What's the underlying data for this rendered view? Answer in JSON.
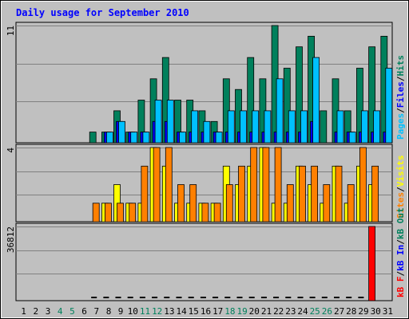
{
  "chart_data": {
    "type": "bar",
    "title": "Daily usage for September 2010",
    "days": [
      "1",
      "2",
      "3",
      "4",
      "5",
      "6",
      "7",
      "8",
      "9",
      "10",
      "11",
      "12",
      "13",
      "14",
      "15",
      "16",
      "17",
      "18",
      "19",
      "20",
      "21",
      "22",
      "23",
      "24",
      "25",
      "26",
      "27",
      "28",
      "29",
      "30",
      "31"
    ],
    "weekend_days": [
      4,
      5,
      11,
      12,
      18,
      19,
      25,
      26
    ],
    "colors": {
      "hits": "#00805c",
      "files": "#0000ff",
      "pages": "#00c0ff",
      "visits": "#ffff00",
      "sites": "#ff8000",
      "kb_out": "#00805c",
      "kb_in": "#0000ff",
      "kb_f": "#ff0000",
      "title": "#0000ff",
      "panel": "#c0c0c0",
      "weekday_label": "#000000",
      "weekend_label": "#00805c"
    },
    "panels": [
      {
        "id": "hits-files-pages",
        "max_label": "11",
        "max": 11,
        "legend": [
          {
            "text": "Pages",
            "color": "#00c0ff"
          },
          {
            "text": "/",
            "color": "#000000"
          },
          {
            "text": "Files",
            "color": "#0000ff"
          },
          {
            "text": "/",
            "color": "#000000"
          },
          {
            "text": "Hits",
            "color": "#00805c"
          }
        ],
        "series": [
          {
            "name": "Hits",
            "color": "#00805c",
            "values": [
              0,
              0,
              0,
              0,
              0,
              0,
              1,
              1,
              3,
              1,
              4,
              6,
              8,
              4,
              4,
              3,
              2,
              6,
              5,
              8,
              6,
              11,
              7,
              9,
              10,
              3,
              6,
              3,
              7,
              9,
              10
            ]
          },
          {
            "name": "Files",
            "color": "#0000ff",
            "values": [
              0,
              0,
              0,
              0,
              0,
              0,
              0,
              1,
              2,
              1,
              1,
              2,
              2,
              1,
              1,
              1,
              1,
              1,
              1,
              1,
              1,
              1,
              1,
              1,
              2,
              0,
              1,
              1,
              1,
              1,
              1
            ]
          },
          {
            "name": "Pages",
            "color": "#00c0ff",
            "values": [
              0,
              0,
              0,
              0,
              0,
              0,
              0,
              1,
              2,
              1,
              1,
              4,
              4,
              1,
              3,
              2,
              1,
              3,
              3,
              3,
              3,
              6,
              3,
              3,
              8,
              0,
              3,
              1,
              3,
              3,
              7
            ]
          }
        ]
      },
      {
        "id": "visits-sites",
        "max_label": "4",
        "max": 4,
        "legend": [
          {
            "text": "Sites",
            "color": "#ff8000"
          },
          {
            "text": "/",
            "color": "#000000"
          },
          {
            "text": "Visits",
            "color": "#ffff00"
          }
        ],
        "series": [
          {
            "name": "Visits",
            "color": "#ffff00",
            "values": [
              0,
              0,
              0,
              0,
              0,
              0,
              0,
              1,
              2,
              1,
              1,
              4,
              3,
              1,
              1,
              1,
              1,
              3,
              2,
              3,
              4,
              1,
              1,
              3,
              2,
              1,
              3,
              1,
              3,
              2,
              0
            ]
          },
          {
            "name": "Sites",
            "color": "#ff8000",
            "values": [
              0,
              0,
              0,
              0,
              0,
              0,
              1,
              1,
              1,
              1,
              3,
              4,
              4,
              2,
              2,
              1,
              1,
              2,
              3,
              4,
              4,
              4,
              2,
              3,
              3,
              2,
              3,
              2,
              4,
              3,
              0
            ]
          }
        ]
      },
      {
        "id": "kbytes",
        "max_label": "36812",
        "max": 36812,
        "legend": [
          {
            "text": "kB F",
            "color": "#ff0000"
          },
          {
            "text": "/",
            "color": "#000000"
          },
          {
            "text": "kB In",
            "color": "#0000ff"
          },
          {
            "text": "/",
            "color": "#000000"
          },
          {
            "text": "kB Out",
            "color": "#00805c"
          }
        ],
        "series": [
          {
            "name": "kB F",
            "color": "#ff0000",
            "values": [
              0,
              0,
              0,
              0,
              0,
              0,
              0,
              0,
              0,
              0,
              0,
              0,
              0,
              0,
              0,
              0,
              0,
              0,
              0,
              0,
              0,
              0,
              0,
              0,
              0,
              0,
              0,
              0,
              0,
              36812,
              0
            ]
          },
          {
            "name": "kB In",
            "color": "#0000ff",
            "values": [
              0,
              0,
              0,
              0,
              0,
              0,
              0,
              0,
              0,
              0,
              0,
              0,
              0,
              0,
              0,
              0,
              0,
              0,
              0,
              0,
              0,
              0,
              0,
              0,
              0,
              0,
              0,
              0,
              0,
              0,
              0
            ]
          },
          {
            "name": "kB Out",
            "color": "#00805c",
            "values": [
              0,
              0,
              0,
              0,
              0,
              0,
              0,
              0,
              0,
              0,
              0,
              0,
              0,
              0,
              0,
              0,
              0,
              0,
              0,
              0,
              0,
              0,
              0,
              0,
              0,
              0,
              0,
              0,
              0,
              0,
              0
            ]
          }
        ],
        "baseline_marker_days": [
          7,
          8,
          9,
          10,
          11,
          12,
          13,
          14,
          15,
          16,
          17,
          18,
          19,
          20,
          21,
          22,
          23,
          24,
          25,
          26,
          27,
          28,
          29,
          30
        ]
      }
    ]
  }
}
